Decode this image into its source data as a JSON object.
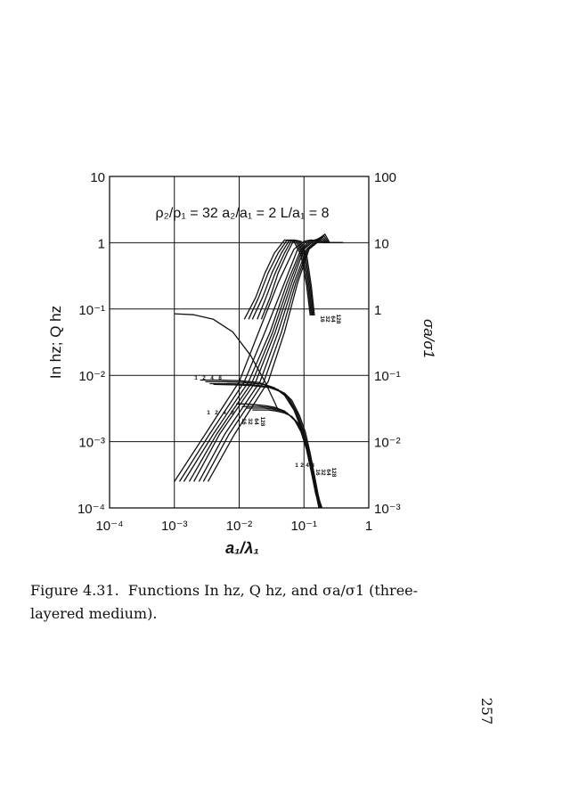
{
  "chart_data": {
    "type": "line",
    "title": "ρ₂/ρ₁ = 32   a₂/a₁ = 2   L/a₁ = 8",
    "xlabel": "a₁/λ₁",
    "ylabel_left": "In hz; Q hz",
    "ylabel_right": "σa/σ1",
    "x_scale": "log",
    "xlim": [
      0.0001,
      1
    ],
    "x_ticks": [
      "10⁻⁴",
      "10⁻³",
      "10⁻²",
      "10⁻¹",
      "1"
    ],
    "y_left_scale": "log",
    "y_left_lim": [
      0.0001,
      10
    ],
    "y_left_ticks": [
      "10⁻⁴",
      "10⁻³",
      "10⁻²",
      "10⁻¹",
      "1",
      "10"
    ],
    "y_right_scale": "log",
    "y_right_lim": [
      0.001,
      100
    ],
    "y_right_ticks": [
      "10⁻³",
      "10⁻²",
      "10⁻¹",
      "1",
      "10",
      "100"
    ],
    "grid": true,
    "curve_labels": {
      "sigma_group": [
        "16",
        "32",
        "64",
        "128"
      ],
      "q_group_a": [
        "1",
        "2",
        "4",
        "8"
      ],
      "q_group_b": [
        "1",
        "2",
        "4",
        "8"
      ],
      "q_group_b_extra": [
        "16",
        "32",
        "64",
        "128"
      ],
      "in_group": [
        "1",
        "2",
        "4",
        "8"
      ],
      "in_group_extra": [
        "16",
        "32",
        "64",
        "128"
      ]
    },
    "series": [
      {
        "group": "sigma",
        "x": [
          0.001,
          0.003,
          0.01,
          0.02,
          0.04,
          0.07,
          0.1,
          0.13,
          0.2,
          0.4
        ],
        "values": [
          0.0025,
          0.013,
          0.08,
          0.45,
          2.5,
          8.0,
          10.5,
          11.0,
          10.0,
          10.0
        ]
      },
      {
        "group": "sigma",
        "x": [
          0.0012,
          0.0035,
          0.012,
          0.025,
          0.05,
          0.08,
          0.11,
          0.15,
          0.2,
          0.4
        ],
        "values": [
          0.0025,
          0.013,
          0.08,
          0.45,
          2.5,
          8.0,
          10.5,
          11.0,
          10.0,
          10.0
        ]
      },
      {
        "group": "sigma",
        "x": [
          0.0014,
          0.004,
          0.014,
          0.03,
          0.055,
          0.09,
          0.12,
          0.16,
          0.2,
          0.4
        ],
        "values": [
          0.0025,
          0.013,
          0.08,
          0.45,
          2.5,
          8.0,
          10.5,
          11.0,
          10.0,
          10.0
        ]
      },
      {
        "group": "sigma",
        "x": [
          0.0017,
          0.0045,
          0.016,
          0.033,
          0.06,
          0.095,
          0.13,
          0.17,
          0.21,
          0.4
        ],
        "values": [
          0.0025,
          0.013,
          0.08,
          0.45,
          2.5,
          8.0,
          10.5,
          11.5,
          10.0,
          10.0
        ]
      },
      {
        "group": "sigma",
        "x": [
          0.002,
          0.005,
          0.018,
          0.036,
          0.065,
          0.1,
          0.14,
          0.18,
          0.22,
          0.4
        ],
        "values": [
          0.0025,
          0.013,
          0.08,
          0.45,
          2.5,
          8.0,
          10.5,
          12.0,
          10.0,
          10.0
        ]
      },
      {
        "group": "sigma",
        "x": [
          0.0024,
          0.006,
          0.021,
          0.04,
          0.07,
          0.11,
          0.15,
          0.19,
          0.23,
          0.4
        ],
        "values": [
          0.0025,
          0.013,
          0.08,
          0.45,
          2.5,
          8.0,
          10.5,
          12.5,
          10.0,
          10.0
        ]
      },
      {
        "group": "sigma",
        "x": [
          0.0028,
          0.007,
          0.024,
          0.045,
          0.075,
          0.115,
          0.16,
          0.2,
          0.24,
          0.4
        ],
        "values": [
          0.0025,
          0.013,
          0.08,
          0.45,
          2.5,
          8.0,
          10.5,
          13.0,
          10.0,
          10.0
        ]
      },
      {
        "group": "sigma",
        "x": [
          0.0033,
          0.0085,
          0.028,
          0.05,
          0.08,
          0.12,
          0.17,
          0.21,
          0.25,
          0.4
        ],
        "values": [
          0.0025,
          0.013,
          0.08,
          0.45,
          2.5,
          8.0,
          10.5,
          13.5,
          10.0,
          10.0
        ]
      },
      {
        "group": "peak",
        "x": [
          0.012,
          0.018,
          0.025,
          0.035,
          0.05,
          0.07,
          0.09,
          0.11,
          0.125
        ],
        "values": [
          0.07,
          0.15,
          0.35,
          0.7,
          1.1,
          1.05,
          0.65,
          0.22,
          0.08
        ]
      },
      {
        "group": "peak",
        "x": [
          0.014,
          0.02,
          0.028,
          0.04,
          0.055,
          0.075,
          0.095,
          0.115,
          0.13
        ],
        "values": [
          0.07,
          0.15,
          0.35,
          0.7,
          1.1,
          1.05,
          0.65,
          0.22,
          0.08
        ]
      },
      {
        "group": "peak",
        "x": [
          0.016,
          0.023,
          0.032,
          0.045,
          0.06,
          0.08,
          0.1,
          0.12,
          0.135
        ],
        "values": [
          0.07,
          0.15,
          0.35,
          0.7,
          1.1,
          1.05,
          0.65,
          0.22,
          0.08
        ]
      },
      {
        "group": "peak",
        "x": [
          0.019,
          0.026,
          0.036,
          0.05,
          0.065,
          0.085,
          0.105,
          0.125,
          0.14
        ],
        "values": [
          0.07,
          0.15,
          0.35,
          0.7,
          1.1,
          1.05,
          0.65,
          0.22,
          0.08
        ]
      },
      {
        "group": "peak",
        "x": [
          0.022,
          0.03,
          0.04,
          0.055,
          0.07,
          0.09,
          0.11,
          0.13,
          0.145
        ],
        "values": [
          0.07,
          0.15,
          0.35,
          0.7,
          1.1,
          1.05,
          0.65,
          0.22,
          0.08
        ]
      },
      {
        "group": "Q",
        "x": [
          0.0025,
          0.005,
          0.01,
          0.02,
          0.035,
          0.05,
          0.07,
          0.09,
          0.11,
          0.13,
          0.15,
          0.17
        ],
        "values": [
          0.0085,
          0.0085,
          0.0083,
          0.0078,
          0.0065,
          0.005,
          0.003,
          0.0016,
          0.00075,
          0.00035,
          0.00018,
          0.0001
        ]
      },
      {
        "group": "Q",
        "x": [
          0.003,
          0.006,
          0.012,
          0.024,
          0.04,
          0.055,
          0.075,
          0.095,
          0.115,
          0.135,
          0.155,
          0.175
        ],
        "values": [
          0.008,
          0.008,
          0.0078,
          0.0073,
          0.0061,
          0.0047,
          0.0028,
          0.0015,
          0.0007,
          0.00033,
          0.00017,
          0.0001
        ]
      },
      {
        "group": "Q",
        "x": [
          0.0035,
          0.007,
          0.014,
          0.027,
          0.045,
          0.06,
          0.08,
          0.1,
          0.12,
          0.14,
          0.16,
          0.18
        ],
        "values": [
          0.0075,
          0.0075,
          0.0073,
          0.0068,
          0.0057,
          0.0044,
          0.0026,
          0.0014,
          0.00068,
          0.00032,
          0.00016,
          0.0001
        ]
      },
      {
        "group": "Q",
        "x": [
          0.004,
          0.008,
          0.016,
          0.03,
          0.05,
          0.065,
          0.085,
          0.105,
          0.125,
          0.145,
          0.165,
          0.185
        ],
        "values": [
          0.0073,
          0.0072,
          0.007,
          0.0065,
          0.0054,
          0.0042,
          0.0025,
          0.0014,
          0.00066,
          0.00031,
          0.00016,
          0.0001
        ]
      },
      {
        "group": "Q",
        "x": [
          0.009,
          0.013,
          0.018,
          0.025,
          0.035,
          0.05,
          0.07,
          0.09,
          0.11,
          0.13,
          0.15,
          0.175
        ],
        "values": [
          0.0037,
          0.0037,
          0.0036,
          0.0035,
          0.0033,
          0.0029,
          0.0022,
          0.0014,
          0.00075,
          0.00035,
          0.00017,
          0.0001
        ]
      },
      {
        "group": "Q",
        "x": [
          0.011,
          0.015,
          0.02,
          0.028,
          0.04,
          0.055,
          0.075,
          0.095,
          0.115,
          0.135,
          0.155,
          0.18
        ],
        "values": [
          0.0034,
          0.0034,
          0.0034,
          0.0033,
          0.0031,
          0.0027,
          0.002,
          0.0013,
          0.0007,
          0.00033,
          0.00016,
          0.0001
        ]
      },
      {
        "group": "Q",
        "x": [
          0.013,
          0.018,
          0.024,
          0.032,
          0.045,
          0.06,
          0.08,
          0.1,
          0.12,
          0.14,
          0.16,
          0.185
        ],
        "values": [
          0.0032,
          0.0032,
          0.0032,
          0.0031,
          0.0029,
          0.0025,
          0.0019,
          0.0012,
          0.00066,
          0.00031,
          0.00016,
          0.0001
        ]
      },
      {
        "group": "Q",
        "x": [
          0.016,
          0.021,
          0.028,
          0.037,
          0.05,
          0.065,
          0.085,
          0.105,
          0.125,
          0.145,
          0.165,
          0.19
        ],
        "values": [
          0.003,
          0.003,
          0.003,
          0.0029,
          0.0027,
          0.0024,
          0.0018,
          0.0011,
          0.00062,
          0.0003,
          0.00015,
          0.0001
        ]
      },
      {
        "group": "In",
        "x": [
          0.001,
          0.002,
          0.004,
          0.008,
          0.015,
          0.025,
          0.04
        ],
        "values": [
          0.085,
          0.082,
          0.07,
          0.045,
          0.02,
          0.008,
          0.003
        ]
      }
    ]
  },
  "caption": {
    "number": "Figure 4.31.",
    "text": "Functions In hz, Q hz, and σa/σ1 (three-layered medium)."
  },
  "page_number": "257"
}
